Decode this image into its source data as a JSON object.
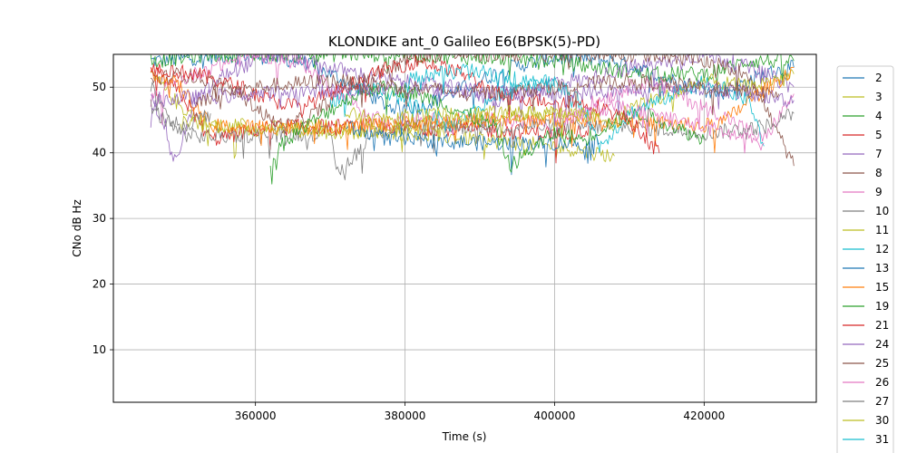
{
  "chart_data": {
    "type": "line",
    "title": "KLONDIKE ant_0 Galileo E6(BPSK(5)-PD)",
    "xlabel": "Time (s)",
    "ylabel": "CNo dB Hz",
    "xlim": [
      341000,
      435000
    ],
    "ylim": [
      2,
      55
    ],
    "xticks": [
      360000,
      380000,
      400000,
      420000
    ],
    "xtick_labels": [
      "360000",
      "380000",
      "400000",
      "420000"
    ],
    "yticks": [
      10,
      20,
      30,
      40,
      50
    ],
    "ytick_labels": [
      "10",
      "20",
      "30",
      "40",
      "50"
    ],
    "grid": true,
    "legend_position": "right, outside plot",
    "series": [
      {
        "name": "2",
        "color": "#1f77b4",
        "points": [
          [
            346000,
            54
          ],
          [
            352000,
            54.5
          ],
          [
            358000,
            55
          ],
          [
            366000,
            54
          ],
          [
            372000,
            51
          ],
          [
            378000,
            47
          ],
          [
            382000,
            47
          ],
          [
            388000,
            50
          ],
          [
            394000,
            53
          ],
          [
            400000,
            54.5
          ],
          [
            408000,
            54
          ],
          [
            416000,
            51
          ],
          [
            422000,
            49
          ],
          [
            428000,
            52
          ],
          [
            432000,
            53
          ]
        ]
      },
      {
        "name": "3",
        "color": "#bcbd22",
        "points": [
          [
            346000,
            52
          ],
          [
            350000,
            47
          ],
          [
            354000,
            44
          ],
          [
            356000,
            43.5
          ],
          [
            370000,
            44
          ],
          [
            380000,
            43
          ],
          [
            390000,
            42
          ],
          [
            400000,
            41
          ],
          [
            408000,
            39.5
          ]
        ]
      },
      {
        "name": "4",
        "color": "#2ca02c",
        "points": [
          [
            346000,
            54
          ],
          [
            354000,
            55
          ],
          [
            380000,
            55
          ],
          [
            400000,
            54
          ],
          [
            412000,
            52
          ],
          [
            420000,
            52
          ],
          [
            426000,
            54
          ],
          [
            432000,
            54
          ]
        ]
      },
      {
        "name": "5",
        "color": "#d62728",
        "points": [
          [
            346000,
            53
          ],
          [
            350000,
            49
          ],
          [
            354000,
            42
          ],
          [
            362000,
            44
          ],
          [
            370000,
            44
          ],
          [
            380000,
            44
          ],
          [
            390000,
            43.5
          ],
          [
            400000,
            43
          ],
          [
            405000,
            43.5
          ]
        ]
      },
      {
        "name": "7",
        "color": "#9467bd",
        "points": [
          [
            346000,
            48
          ],
          [
            348000,
            44
          ],
          [
            349000,
            38
          ],
          [
            352000,
            48
          ],
          [
            356000,
            52
          ],
          [
            362000,
            55
          ],
          [
            370000,
            53
          ],
          [
            378000,
            51
          ],
          [
            386000,
            50
          ],
          [
            392000,
            48
          ],
          [
            396000,
            49
          ],
          [
            400000,
            51
          ],
          [
            404000,
            51
          ],
          [
            410000,
            53
          ],
          [
            416000,
            54
          ],
          [
            420000,
            55
          ],
          [
            426000,
            53
          ],
          [
            432000,
            50
          ]
        ]
      },
      {
        "name": "8",
        "color": "#8c564b",
        "points": [
          [
            346000,
            51
          ],
          [
            350000,
            52
          ],
          [
            354000,
            51
          ],
          [
            358000,
            49
          ],
          [
            362000,
            45
          ],
          [
            364000,
            44
          ],
          [
            368000,
            46
          ],
          [
            372000,
            50
          ],
          [
            378000,
            53
          ],
          [
            382000,
            55
          ],
          [
            390000,
            55
          ],
          [
            398000,
            55
          ],
          [
            406000,
            55
          ],
          [
            414000,
            55
          ],
          [
            420000,
            54
          ],
          [
            426000,
            52
          ],
          [
            432000,
            38
          ]
        ]
      },
      {
        "name": "9",
        "color": "#e377c2",
        "points": [
          [
            346000,
            48
          ],
          [
            350000,
            51
          ],
          [
            354000,
            53
          ],
          [
            360000,
            55
          ],
          [
            366000,
            54
          ],
          [
            370000,
            50
          ],
          [
            374000,
            47
          ],
          [
            378000,
            44
          ],
          [
            380000,
            45
          ],
          [
            386000,
            45
          ],
          [
            392000,
            45
          ],
          [
            398000,
            45
          ],
          [
            400000,
            43
          ],
          [
            402000,
            46
          ],
          [
            406000,
            48
          ],
          [
            410000,
            50
          ],
          [
            414000,
            50.5
          ],
          [
            418000,
            48
          ],
          [
            422000,
            46
          ],
          [
            428000,
            42
          ],
          [
            432000,
            49
          ]
        ]
      },
      {
        "name": "10",
        "color": "#7f7f7f",
        "points": [
          [
            346000,
            50
          ],
          [
            348000,
            46
          ],
          [
            350000,
            43
          ],
          [
            352000,
            42.5
          ],
          [
            370000,
            43
          ],
          [
            371000,
            37
          ],
          [
            376000,
            43
          ],
          [
            380000,
            44
          ],
          [
            390000,
            44
          ],
          [
            400000,
            44
          ],
          [
            410000,
            44
          ],
          [
            420000,
            43
          ],
          [
            428000,
            44
          ],
          [
            432000,
            46
          ]
        ]
      },
      {
        "name": "11",
        "color": "#bcbd22",
        "points": [
          [
            350000,
            44.5
          ],
          [
            360000,
            44
          ],
          [
            372000,
            43
          ],
          [
            380000,
            44
          ],
          [
            388000,
            45
          ],
          [
            396000,
            46
          ],
          [
            404000,
            46
          ],
          [
            408000,
            44
          ],
          [
            410000,
            47
          ],
          [
            416000,
            49
          ],
          [
            420000,
            51
          ],
          [
            426000,
            50
          ],
          [
            432000,
            52
          ]
        ]
      },
      {
        "name": "12",
        "color": "#17becf",
        "points": [
          [
            370000,
            48
          ],
          [
            376000,
            50
          ],
          [
            382000,
            47
          ],
          [
            386000,
            44
          ],
          [
            390000,
            47
          ],
          [
            394000,
            50
          ],
          [
            400000,
            51
          ],
          [
            404000,
            47
          ],
          [
            406000,
            41
          ],
          [
            410000,
            46
          ],
          [
            416000,
            49
          ],
          [
            420000,
            51
          ],
          [
            426000,
            48
          ],
          [
            428000,
            41
          ]
        ]
      },
      {
        "name": "13",
        "color": "#1f77b4",
        "points": [
          [
            372000,
            44
          ],
          [
            378000,
            42
          ],
          [
            380000,
            42
          ],
          [
            390000,
            41.5
          ],
          [
            400000,
            41.5
          ],
          [
            406000,
            41.5
          ]
        ]
      },
      {
        "name": "15",
        "color": "#ff7f0e",
        "points": [
          [
            346000,
            52.5
          ],
          [
            350000,
            50
          ],
          [
            354000,
            44
          ],
          [
            360000,
            44
          ],
          [
            370000,
            44
          ],
          [
            380000,
            44.5
          ],
          [
            390000,
            45
          ],
          [
            400000,
            45
          ],
          [
            410000,
            45
          ],
          [
            420000,
            44
          ],
          [
            423000,
            45
          ],
          [
            426000,
            48
          ],
          [
            430000,
            51
          ],
          [
            432000,
            53
          ]
        ]
      },
      {
        "name": "19",
        "color": "#2ca02c",
        "points": [
          [
            362000,
            38
          ],
          [
            364000,
            42
          ],
          [
            368000,
            45
          ],
          [
            372000,
            48
          ],
          [
            376000,
            50
          ],
          [
            380000,
            49.5
          ],
          [
            384000,
            48
          ],
          [
            388000,
            46
          ],
          [
            392000,
            44
          ],
          [
            394000,
            38
          ],
          [
            400000,
            43
          ],
          [
            404000,
            42
          ],
          [
            408000,
            45
          ],
          [
            412000,
            46
          ],
          [
            416000,
            44
          ],
          [
            420000,
            42
          ]
        ]
      },
      {
        "name": "21",
        "color": "#d62728",
        "points": [
          [
            346000,
            53
          ],
          [
            352000,
            52
          ],
          [
            358000,
            50
          ],
          [
            362000,
            48
          ],
          [
            366000,
            47
          ],
          [
            372000,
            50
          ],
          [
            378000,
            53
          ],
          [
            382000,
            54
          ],
          [
            388000,
            52
          ],
          [
            392000,
            49
          ],
          [
            398000,
            48
          ],
          [
            402000,
            48
          ],
          [
            406000,
            47
          ],
          [
            410000,
            45
          ],
          [
            414000,
            40
          ]
        ]
      },
      {
        "name": "24",
        "color": "#9467bd",
        "points": [
          [
            346000,
            48
          ],
          [
            360000,
            49
          ],
          [
            380000,
            50
          ],
          [
            400000,
            49
          ],
          [
            420000,
            50
          ],
          [
            432000,
            48
          ]
        ]
      },
      {
        "name": "25",
        "color": "#8c564b",
        "points": [
          [
            352000,
            48
          ],
          [
            360000,
            50
          ],
          [
            370000,
            51
          ],
          [
            380000,
            50
          ],
          [
            390000,
            49
          ],
          [
            400000,
            50
          ],
          [
            410000,
            51
          ],
          [
            420000,
            50
          ],
          [
            430000,
            49
          ]
        ]
      },
      {
        "name": "26",
        "color": "#e377c2",
        "points": [
          [
            400000,
            45
          ],
          [
            404000,
            46
          ],
          [
            408000,
            47
          ],
          [
            412000,
            46
          ],
          [
            420000,
            44
          ],
          [
            426000,
            42
          ],
          [
            428000,
            41.5
          ]
        ]
      },
      {
        "name": "27",
        "color": "#7f7f7f",
        "points": [
          [
            346000,
            47
          ],
          [
            348000,
            45
          ],
          [
            350000,
            44
          ],
          [
            352000,
            45
          ],
          [
            354000,
            46
          ]
        ]
      },
      {
        "name": "30",
        "color": "#bcbd22",
        "points": [
          [
            372000,
            46
          ],
          [
            376000,
            45
          ],
          [
            380000,
            45.5
          ],
          [
            390000,
            46
          ],
          [
            400000,
            46
          ],
          [
            406000,
            46
          ]
        ]
      },
      {
        "name": "31",
        "color": "#17becf",
        "points": [
          [
            380000,
            51
          ],
          [
            384000,
            52
          ],
          [
            388000,
            52.5
          ],
          [
            392000,
            52
          ],
          [
            396000,
            51
          ],
          [
            400000,
            50
          ]
        ]
      }
    ]
  }
}
